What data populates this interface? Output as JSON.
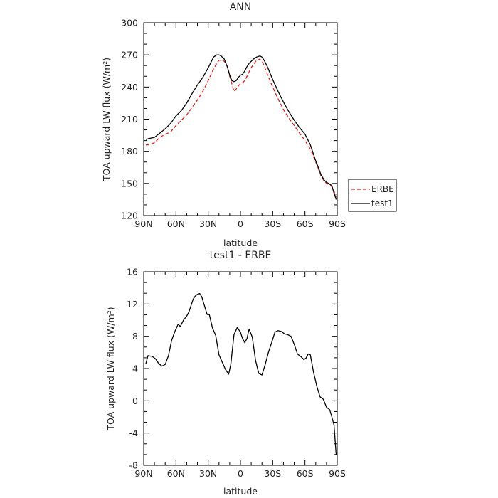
{
  "chart_data": [
    {
      "type": "line",
      "title": "ANN",
      "xlabel": "latitude",
      "ylabel": "TOA upward LW flux (W/m²)",
      "xlim": [
        90,
        -90
      ],
      "ylim": [
        120,
        300
      ],
      "x_ticks": [
        "90N",
        "60N",
        "30N",
        "0",
        "30S",
        "60S",
        "90S"
      ],
      "y_ticks": [
        "120",
        "150",
        "180",
        "210",
        "240",
        "270",
        "300"
      ],
      "legend_position": "right",
      "series": [
        {
          "name": "ERBE",
          "color": "#e0201b",
          "dash": "dashed",
          "x": [
            88,
            85,
            80,
            75,
            70,
            65,
            60,
            55,
            50,
            45,
            40,
            35,
            30,
            25,
            22,
            20,
            18,
            15,
            12,
            10,
            8,
            6,
            4,
            2,
            0,
            -2,
            -4,
            -6,
            -8,
            -10,
            -12,
            -15,
            -18,
            -20,
            -22,
            -25,
            -30,
            -35,
            -40,
            -45,
            -50,
            -55,
            -60,
            -65,
            -70,
            -72,
            -75,
            -78,
            -80,
            -82,
            -85,
            -87,
            -89
          ],
          "values": [
            186,
            186,
            188,
            193,
            196,
            198,
            204,
            209,
            214,
            221,
            228,
            236,
            246,
            257,
            262,
            265,
            265,
            264,
            259,
            250,
            243,
            236,
            238,
            241,
            243,
            244,
            246,
            250,
            254,
            258,
            261,
            265,
            266,
            264,
            260,
            252,
            240,
            229,
            219,
            211,
            204,
            197,
            190,
            182,
            170,
            165,
            157,
            152,
            150,
            149,
            147,
            143,
            137
          ]
        },
        {
          "name": "test1",
          "color": "#000000",
          "dash": "solid",
          "x": [
            88,
            85,
            80,
            75,
            70,
            65,
            60,
            55,
            50,
            45,
            40,
            35,
            30,
            25,
            22,
            20,
            18,
            15,
            12,
            10,
            8,
            6,
            4,
            2,
            0,
            -2,
            -4,
            -6,
            -8,
            -10,
            -12,
            -15,
            -18,
            -20,
            -22,
            -25,
            -30,
            -35,
            -40,
            -45,
            -50,
            -55,
            -60,
            -65,
            -70,
            -72,
            -75,
            -78,
            -80,
            -82,
            -85,
            -87,
            -89
          ],
          "values": [
            191,
            192,
            193,
            197,
            201,
            206,
            213,
            218,
            225,
            234,
            242,
            249,
            258,
            268,
            270,
            270,
            269,
            266,
            258,
            251,
            246,
            245,
            246,
            249,
            251,
            252,
            255,
            259,
            262,
            264,
            266,
            268,
            269,
            268,
            265,
            259,
            247,
            236,
            226,
            217,
            209,
            202,
            196,
            186,
            171,
            166,
            158,
            153,
            151,
            150,
            148,
            141,
            135
          ]
        }
      ]
    },
    {
      "type": "line",
      "title": "test1 - ERBE",
      "xlabel": "latitude",
      "ylabel": "TOA upward LW flux (W/m²)",
      "xlim": [
        90,
        -90
      ],
      "ylim": [
        -8,
        16
      ],
      "x_ticks": [
        "90N",
        "60N",
        "30N",
        "0",
        "30S",
        "60S",
        "90S"
      ],
      "y_ticks": [
        "-8",
        "-4",
        "0",
        "4",
        "8",
        "12",
        "16"
      ],
      "series": [
        {
          "color": "#000000",
          "x": [
            88,
            86,
            82,
            79,
            76,
            73,
            70,
            67,
            64,
            61,
            58,
            56,
            53,
            50,
            48,
            46,
            44,
            42,
            40,
            38,
            36,
            34,
            31,
            29,
            26,
            23,
            20,
            17,
            14,
            11,
            9,
            6,
            3,
            0,
            -2,
            -4,
            -6,
            -8,
            -11,
            -14,
            -17,
            -20,
            -23,
            -26,
            -29,
            -32,
            -35,
            -38,
            -41,
            -44,
            -47,
            -50,
            -53,
            -56,
            -59,
            -61,
            -63,
            -65,
            -68,
            -71,
            -74,
            -77,
            -80,
            -83,
            -85,
            -87,
            -89
          ],
          "values": [
            4.6,
            5.6,
            5.5,
            5.2,
            4.6,
            4.3,
            4.5,
            5.6,
            7.5,
            8.6,
            9.5,
            9.2,
            10.0,
            10.5,
            11.0,
            11.8,
            12.6,
            13.0,
            13.2,
            13.3,
            12.9,
            12.0,
            10.7,
            10.7,
            9.0,
            8.1,
            5.7,
            4.8,
            3.9,
            3.3,
            4.5,
            8.2,
            9.1,
            8.5,
            7.7,
            7.2,
            7.7,
            8.9,
            7.9,
            5.0,
            3.4,
            3.2,
            4.5,
            6.0,
            7.2,
            8.5,
            8.7,
            8.6,
            8.3,
            8.2,
            8.0,
            7.0,
            5.8,
            5.5,
            5.1,
            5.3,
            5.8,
            5.7,
            3.5,
            1.8,
            0.5,
            0.2,
            -0.8,
            -1.1,
            -2.0,
            -3.0,
            -6.7
          ]
        }
      ]
    }
  ]
}
